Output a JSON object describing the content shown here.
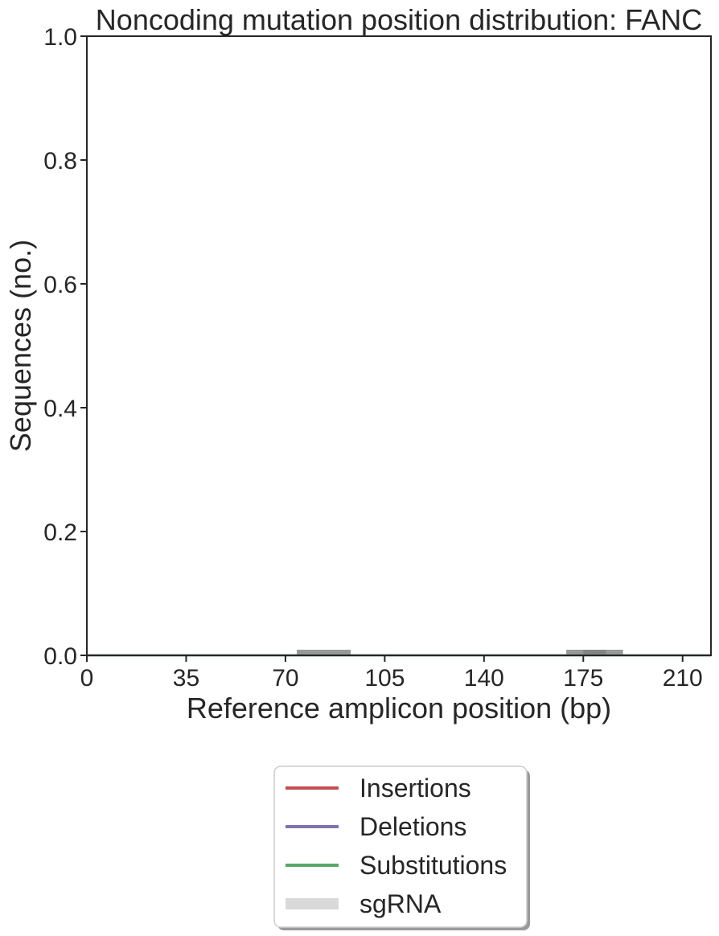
{
  "chart_data": {
    "type": "line",
    "title": "Noncoding mutation position distribution: FANC",
    "xlabel": "Reference amplicon position (bp)",
    "ylabel": "Sequences (no.)",
    "xlim": [
      0,
      220
    ],
    "ylim": [
      0,
      1.0
    ],
    "x_ticks": [
      0,
      35,
      70,
      105,
      140,
      175,
      210
    ],
    "x_tick_labels": [
      "0",
      "35",
      "70",
      "105",
      "140",
      "175",
      "210"
    ],
    "y_ticks": [
      0.0,
      0.2,
      0.4,
      0.6,
      0.8,
      1.0
    ],
    "y_tick_labels": [
      "0.0",
      "0.2",
      "0.4",
      "0.6",
      "0.8",
      "1.0"
    ],
    "grid": false,
    "legend_position": "below",
    "series": [
      {
        "name": "Insertions",
        "color": "#c44e52",
        "x": [
          0,
          220
        ],
        "y": [
          0,
          0
        ]
      },
      {
        "name": "Deletions",
        "color": "#8172b2",
        "x": [
          0,
          220
        ],
        "y": [
          0,
          0
        ]
      },
      {
        "name": "Substitutions",
        "color": "#55a868",
        "x": [
          0,
          220
        ],
        "y": [
          0,
          0
        ]
      }
    ],
    "sgrna": {
      "name": "sgRNA",
      "color": "#808080",
      "legend_color": "#d9d9d9",
      "intervals": [
        [
          74,
          93
        ],
        [
          169,
          183
        ],
        [
          175,
          189
        ]
      ]
    }
  }
}
